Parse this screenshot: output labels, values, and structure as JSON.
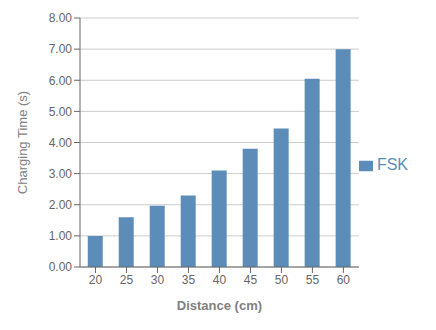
{
  "chart_data": {
    "type": "bar",
    "categories": [
      "20",
      "25",
      "30",
      "35",
      "40",
      "45",
      "50",
      "55",
      "60"
    ],
    "series": [
      {
        "name": "FSK",
        "color": "#5B8DB8",
        "values": [
          1.0,
          1.6,
          1.97,
          2.3,
          3.1,
          3.8,
          4.45,
          6.05,
          7.0
        ]
      }
    ],
    "xlabel": "Distance (cm)",
    "ylabel": "Charging Time (s)",
    "ylim": [
      0,
      8
    ],
    "yticks": [
      {
        "value": 0,
        "label": "0.00"
      },
      {
        "value": 1,
        "label": "1.00"
      },
      {
        "value": 2,
        "label": "2.00"
      },
      {
        "value": 3,
        "label": "3.00"
      },
      {
        "value": 4,
        "label": "4.00"
      },
      {
        "value": 5,
        "label": "5.00"
      },
      {
        "value": 6,
        "label": "6.00"
      },
      {
        "value": 7,
        "label": "7.00"
      },
      {
        "value": 8,
        "label": "8.00"
      }
    ],
    "grid": true,
    "legend": "right"
  }
}
